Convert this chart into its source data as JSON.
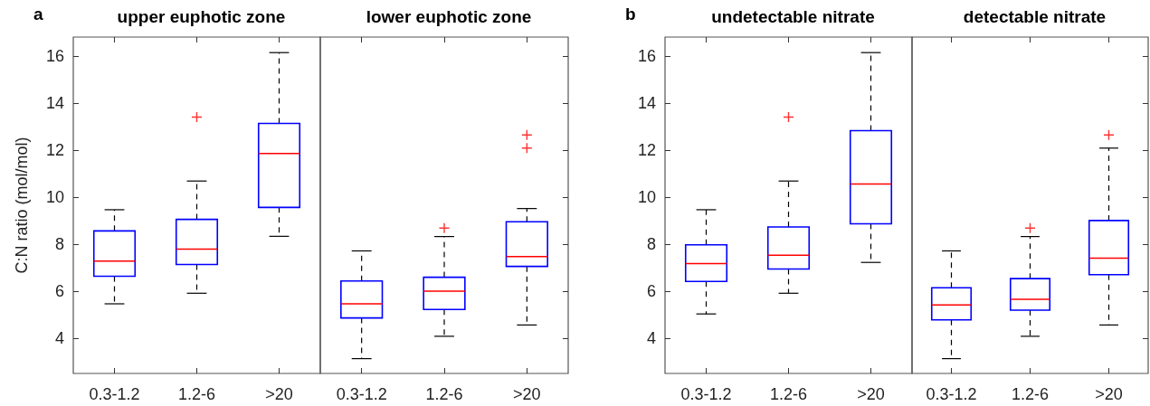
{
  "chart_data": [
    {
      "type": "box",
      "title": "upper euphotic zone",
      "ylabel": "C:N ratio (mol/mol)",
      "annotations": [
        "a"
      ],
      "categories": [
        "0.3-1.2",
        "1.2-6",
        ">20"
      ],
      "ylim": [
        2.5,
        16.8
      ],
      "yticks": [
        4,
        6,
        8,
        10,
        12,
        14,
        16
      ],
      "series": [
        {
          "color": "#0000ff",
          "boxes": [
            {
              "low": 5.46,
              "q1": 6.63,
              "median": 7.28,
              "q3": 8.56,
              "high": 9.46
            },
            {
              "low": 5.91,
              "q1": 7.13,
              "median": 7.79,
              "q3": 9.05,
              "high": 10.68,
              "outliers": [
                13.4
              ]
            },
            {
              "low": 8.33,
              "q1": 9.56,
              "median": 11.85,
              "q3": 13.13,
              "high": 16.14
            }
          ]
        }
      ]
    },
    {
      "type": "box",
      "title": "lower euphotic zone",
      "tick_labels": "x",
      "categories": [
        "0.3-1.2",
        "1.2-6",
        ">20"
      ],
      "ylim": [
        2.5,
        16.8
      ],
      "yticks": [
        4,
        6,
        8,
        10,
        12,
        14,
        16
      ],
      "series": [
        {
          "color": "#0000ff",
          "boxes": [
            {
              "low": 3.13,
              "q1": 4.86,
              "median": 5.46,
              "q3": 6.43,
              "high": 7.71
            },
            {
              "low": 4.08,
              "q1": 5.22,
              "median": 6.0,
              "q3": 6.59,
              "high": 8.32,
              "outliers": [
                8.68
              ]
            },
            {
              "low": 4.56,
              "q1": 7.05,
              "median": 7.47,
              "q3": 8.95,
              "high": 9.51,
              "outliers": [
                12.08,
                12.64
              ]
            }
          ]
        }
      ]
    },
    {
      "type": "box",
      "title": "undetectable nitrate",
      "annotations": [
        "b"
      ],
      "categories": [
        "0.3-1.2",
        "1.2-6",
        ">20"
      ],
      "ylim": [
        2.5,
        16.8
      ],
      "yticks": [
        4,
        6,
        8,
        10,
        12,
        14,
        16
      ],
      "series": [
        {
          "color": "#0000ff",
          "boxes": [
            {
              "low": 5.03,
              "q1": 6.41,
              "median": 7.17,
              "q3": 7.97,
              "high": 9.46
            },
            {
              "low": 5.91,
              "q1": 6.94,
              "median": 7.53,
              "q3": 8.73,
              "high": 10.68,
              "outliers": [
                13.4
              ]
            },
            {
              "low": 7.22,
              "q1": 8.86,
              "median": 10.55,
              "q3": 12.82,
              "high": 16.14
            }
          ]
        }
      ]
    },
    {
      "type": "box",
      "title": "detectable nitrate",
      "tick_labels": "x",
      "categories": [
        "0.3-1.2",
        "1.2-6",
        ">20"
      ],
      "ylim": [
        2.5,
        16.8
      ],
      "yticks": [
        4,
        6,
        8,
        10,
        12,
        14,
        16
      ],
      "series": [
        {
          "color": "#0000ff",
          "boxes": [
            {
              "low": 3.13,
              "q1": 4.78,
              "median": 5.41,
              "q3": 6.14,
              "high": 7.71
            },
            {
              "low": 4.08,
              "q1": 5.19,
              "median": 5.65,
              "q3": 6.53,
              "high": 8.32,
              "outliers": [
                8.68
              ]
            },
            {
              "low": 4.56,
              "q1": 6.7,
              "median": 7.4,
              "q3": 9.0,
              "high": 12.08,
              "outliers": [
                12.64
              ]
            }
          ]
        }
      ]
    }
  ]
}
